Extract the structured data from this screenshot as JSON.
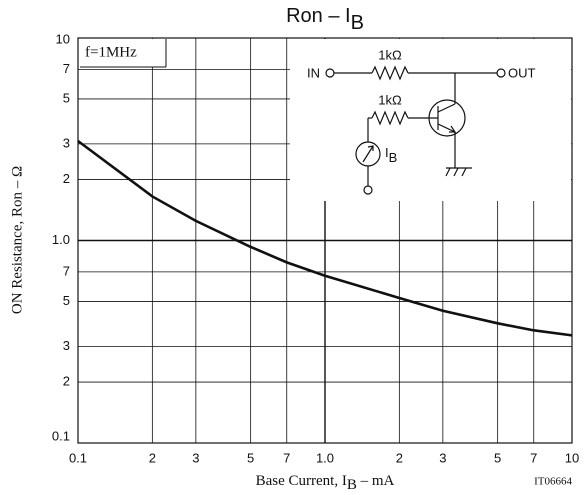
{
  "chart_data": {
    "type": "line",
    "title": {
      "text": "Ron – I",
      "sub": "B"
    },
    "x_label": {
      "text": "Base Current, I",
      "sub": "B",
      "unit": " – mA"
    },
    "y_label": "ON Resistance, Ron – Ω",
    "annotations": {
      "condition": "f=1MHz",
      "code": "IT06664"
    },
    "circuit": {
      "r1": "1kΩ",
      "r2": "1kΩ",
      "in": "IN",
      "out": "OUT",
      "meter": "I",
      "meter_sub": "B"
    },
    "x": [
      0.1,
      0.2,
      0.3,
      0.5,
      0.7,
      1.0,
      2,
      3,
      5,
      7,
      10
    ],
    "series": [
      {
        "name": "Ron",
        "color": "#111111",
        "values": [
          3.1,
          1.65,
          1.25,
          0.93,
          0.78,
          0.67,
          0.52,
          0.45,
          0.39,
          0.36,
          0.34
        ]
      }
    ],
    "xscale": "log",
    "yscale": "log",
    "grid": true,
    "xlim": [
      0.1,
      10
    ],
    "ylim": [
      0.1,
      10
    ],
    "xticks": [
      0.1,
      {
        "value": 0.2,
        "label": "2"
      },
      {
        "value": 0.3,
        "label": "3"
      },
      {
        "value": 0.5,
        "label": "5"
      },
      {
        "value": 0.7,
        "label": "7"
      },
      {
        "value": 1,
        "label": "1.0"
      },
      2,
      3,
      5,
      7,
      10
    ],
    "yticks": [
      0.1,
      {
        "value": 0.2,
        "label": "2"
      },
      {
        "value": 0.3,
        "label": "3"
      },
      {
        "value": 0.5,
        "label": "5"
      },
      {
        "value": 0.7,
        "label": "7"
      },
      {
        "value": 1,
        "label": "1.0"
      },
      2,
      3,
      5,
      7,
      10
    ]
  }
}
